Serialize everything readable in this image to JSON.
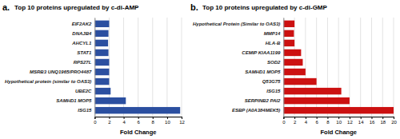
{
  "chart_data": [
    {
      "type": "bar",
      "orientation": "horizontal",
      "title": "Top 10 proteins upregulated by c-di-AMP",
      "annotations": [
        "a."
      ],
      "categories": [
        "EIF2AK2",
        "DNAJB4",
        "AHCYL1",
        "STAT1",
        "RPS27L",
        "MSRB3 UNQ1965/PRO4487",
        "Hypothetical protein (similar to OAS3)",
        "UBE2C",
        "SAMHD1 MOP5",
        "ISG15"
      ],
      "values": [
        2.0,
        1.9,
        1.85,
        1.9,
        2.0,
        2.0,
        2.0,
        2.2,
        4.3,
        11.8
      ],
      "color": "#2b4fa0",
      "xlabel": "Fold Change",
      "xlim": [
        0,
        12
      ],
      "xticks": [
        0,
        2,
        4,
        6,
        8,
        10,
        12
      ],
      "grid": true
    },
    {
      "type": "bar",
      "orientation": "horizontal",
      "title": "Top 10 proteins upregulated by c-di-GMP",
      "annotations": [
        "b."
      ],
      "categories": [
        "Hypothetical Protein (Similar to OAS3)",
        "MMP14",
        "HLA-B",
        "CEMIP KIAA1199",
        "SOD2",
        "SAMHD1 MOP5",
        "Q53G75",
        "ISG15",
        "SERPINB2 PAI2",
        "ESBP (A0A384MEK5)"
      ],
      "values": [
        2.0,
        1.9,
        2.0,
        3.2,
        3.5,
        4.0,
        6.0,
        10.5,
        12.0,
        20.0
      ],
      "color": "#cc1111",
      "xlabel": "Fold Change",
      "xlim": [
        0,
        20
      ],
      "xticks": [
        0,
        2,
        4,
        6,
        8,
        10,
        12,
        14,
        16,
        18,
        20
      ],
      "grid": true
    }
  ]
}
